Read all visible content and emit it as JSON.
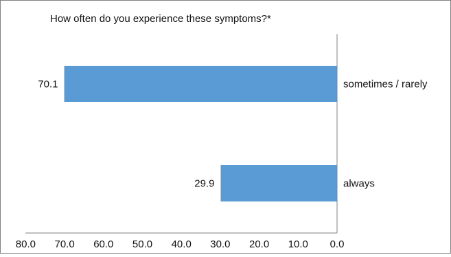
{
  "chart_data": {
    "type": "bar",
    "orientation": "horizontal",
    "x_axis_reversed": true,
    "title": "How often do you experience these symptoms?*",
    "categories": [
      "sometimes / rarely",
      "always"
    ],
    "values": [
      70.1,
      29.9
    ],
    "value_labels": [
      "70.1",
      "29.9"
    ],
    "xlim": [
      0,
      80
    ],
    "x_ticks": [
      "80.0",
      "70.0",
      "60.0",
      "50.0",
      "40.0",
      "30.0",
      "20.0",
      "10.0",
      "0.0"
    ],
    "x_tick_values": [
      80,
      70,
      60,
      50,
      40,
      30,
      20,
      10,
      0
    ],
    "grid": false,
    "legend": "none",
    "bar_color": "#5b9bd5",
    "frame_color": "#808080",
    "axis_color": "#808080"
  }
}
